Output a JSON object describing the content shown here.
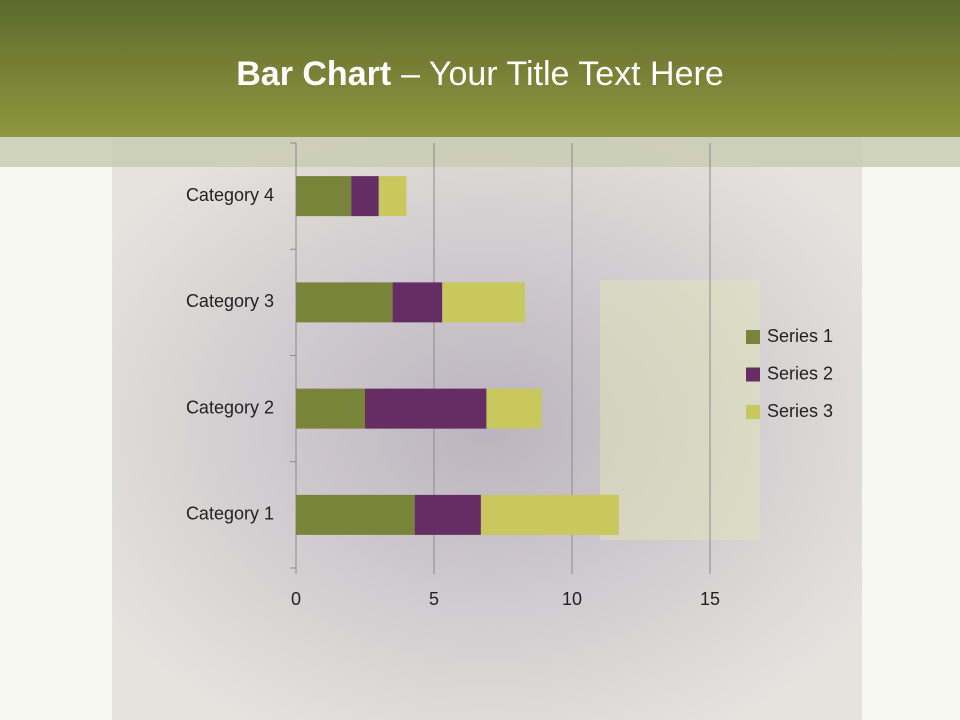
{
  "chart_data": {
    "type": "stacked-bar-horizontal",
    "title_runs": [
      "Bar Chart",
      "– Your Title Text Here"
    ],
    "categories": [
      "Category 1",
      "Category 2",
      "Category 3",
      "Category 4"
    ],
    "series": [
      {
        "name": "Series 1",
        "color": "#77843a",
        "values": [
          4.3,
          2.5,
          3.5,
          2.0
        ]
      },
      {
        "name": "Series 2",
        "color": "#652d63",
        "values": [
          2.4,
          4.4,
          1.8,
          1.0
        ]
      },
      {
        "name": "Series 3",
        "color": "#c8c85f",
        "values": [
          5.0,
          2.0,
          3.0,
          1.0
        ]
      }
    ],
    "xlim": [
      0,
      15
    ],
    "xticks": [
      0,
      5,
      10,
      15
    ],
    "grid": true,
    "legend": "right"
  }
}
